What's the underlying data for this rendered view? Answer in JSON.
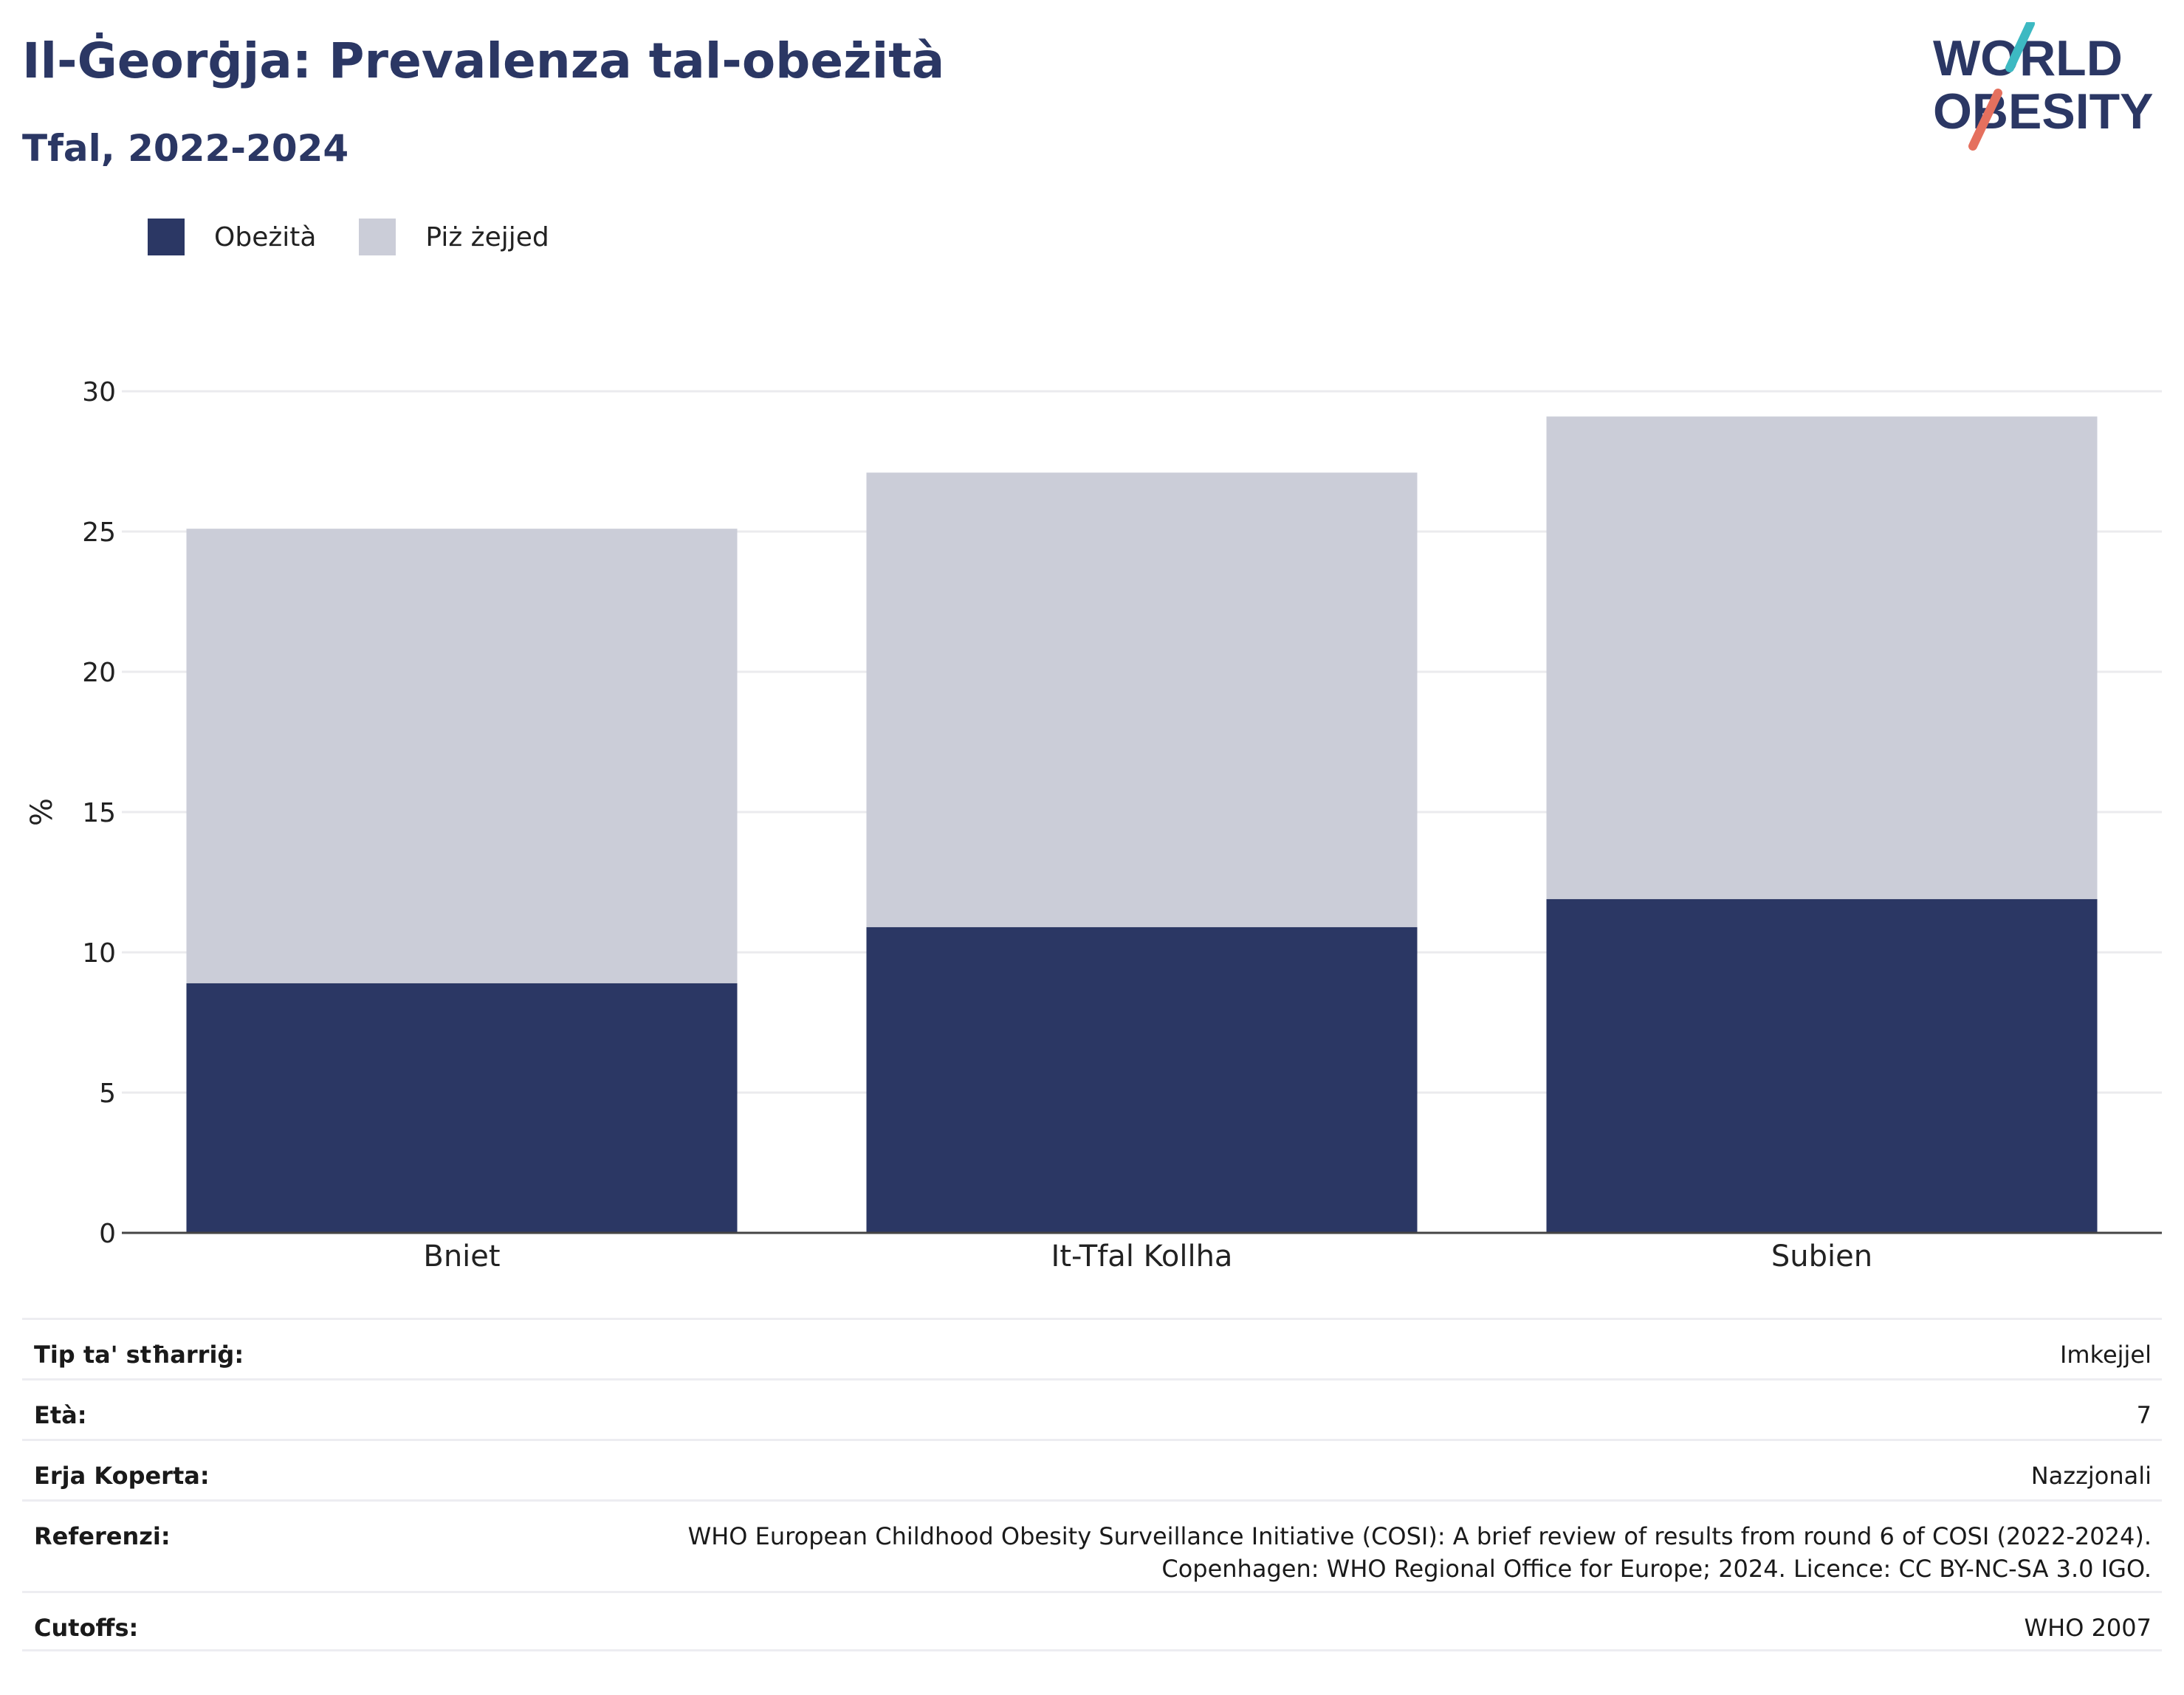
{
  "header": {
    "title": "Il-Ġeorġja: Prevalenza tal-obeżità",
    "subtitle": "Tfal, 2022-2024"
  },
  "logo": {
    "line1": "WORLD",
    "line2": "OBESITY"
  },
  "colors": {
    "obesity": "#2b3764",
    "overweight": "#cbcdd8",
    "logo_teal": "#3db9c2",
    "logo_coral": "#e5705e"
  },
  "chart_data": {
    "type": "bar",
    "stacked": true,
    "categories": [
      "Bniet",
      "It-Tfal Kollha",
      "Subien"
    ],
    "series": [
      {
        "name": "Obeżità",
        "values": [
          8.9,
          10.9,
          11.9
        ]
      },
      {
        "name": "Piż żejjed",
        "values": [
          16.2,
          16.2,
          17.2
        ]
      }
    ],
    "title": "Il-Ġeorġja: Prevalenza tal-obeżità",
    "subtitle": "Tfal, 2022-2024",
    "ylabel": "%",
    "ylim": [
      0,
      30
    ],
    "yticks": [
      0,
      5,
      10,
      15,
      20,
      25,
      30
    ],
    "grid": true,
    "legend": "top-left"
  },
  "info": {
    "rows": [
      {
        "label": "Tip ta' stħarriġ:",
        "value": [
          "Imkejjel"
        ]
      },
      {
        "label": "Età:",
        "value": [
          "7"
        ]
      },
      {
        "label": "Erja Koperta:",
        "value": [
          "Nazzjonali"
        ]
      },
      {
        "label": "Referenzi:",
        "value": [
          "WHO European Childhood Obesity Surveillance Initiative (COSI): A brief review of results from round 6 of COSI (2022-2024).",
          "Copenhagen: WHO Regional Office for Europe; 2024. Licence: CC BY-NC-SA 3.0 IGO."
        ]
      },
      {
        "label": "Cutoffs:",
        "value": [
          "WHO 2007"
        ]
      }
    ]
  }
}
